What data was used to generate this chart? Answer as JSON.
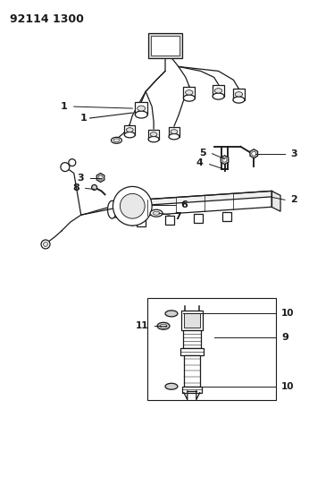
{
  "title": "92114 1300",
  "bg_color": "#ffffff",
  "line_color": "#1a1a1a",
  "fig_width": 3.74,
  "fig_height": 5.33,
  "dpi": 100
}
